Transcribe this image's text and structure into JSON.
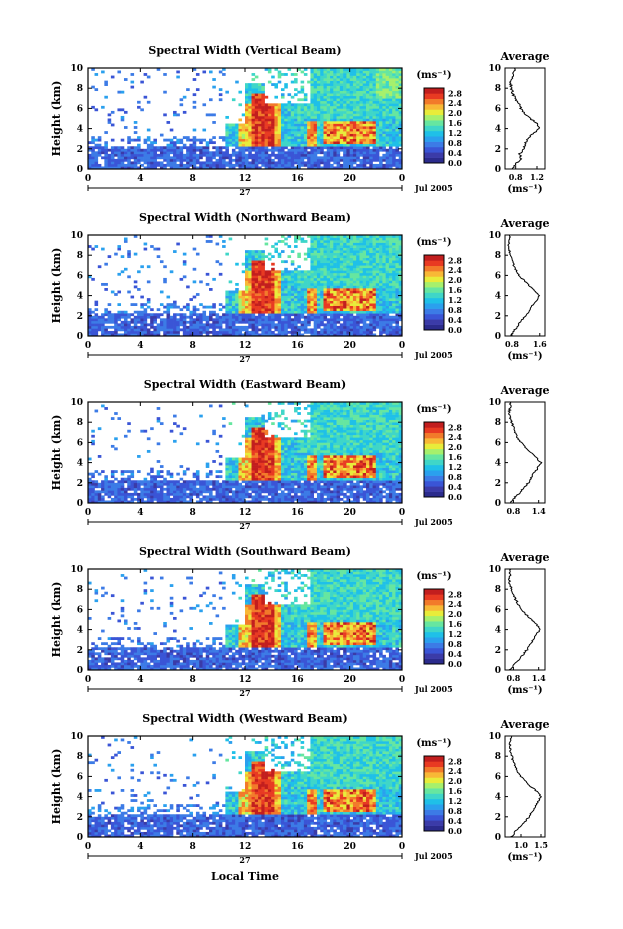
{
  "figure": {
    "xlabel": "Local Time",
    "date_label": "27",
    "month_label": "Jul 2005"
  },
  "colors": {
    "colormap": [
      "#2b2b8c",
      "#3b3ba8",
      "#3a55d6",
      "#3c7be6",
      "#2aa0ee",
      "#1fc0e8",
      "#3fd6c8",
      "#66e6a0",
      "#a6f06c",
      "#e8ec3a",
      "#f8b836",
      "#f27a2a",
      "#e83a22",
      "#c21e1e"
    ],
    "line": "#000000"
  },
  "chart_data": [
    {
      "type": "heatmap",
      "title": "Spectral Width (Vertical Beam)",
      "ylabel": "Height (km)",
      "x_ticks": [
        "0",
        "4",
        "8",
        "12",
        "16",
        "20",
        "0"
      ],
      "y_ticks": [
        "0",
        "2",
        "4",
        "6",
        "8",
        "10"
      ],
      "xlim": [
        0,
        24
      ],
      "ylim": [
        0,
        10
      ],
      "colorbar": {
        "unit": "(ms⁻¹)",
        "ticks": [
          "0.0",
          "0.4",
          "0.8",
          "1.2",
          "1.6",
          "2.0",
          "2.4",
          "2.8"
        ],
        "range": [
          0,
          2.8
        ]
      },
      "average": {
        "title": "Average",
        "xlabel": "(ms⁻¹)",
        "x_ticks": [
          "0.8",
          "1.2"
        ],
        "y_ticks": [
          "0",
          "2",
          "4",
          "6",
          "8",
          "10"
        ],
        "xlim": [
          0.6,
          1.35
        ],
        "profile_height": [
          0,
          0.5,
          1,
          1.5,
          2,
          2.5,
          3,
          3.5,
          4,
          4.5,
          5,
          5.5,
          6,
          6.5,
          7,
          7.5,
          8,
          8.5,
          9,
          9.5,
          10
        ],
        "profile_value": [
          0.72,
          0.8,
          0.9,
          0.88,
          0.95,
          0.98,
          1.02,
          1.12,
          1.25,
          1.2,
          1.08,
          0.98,
          0.9,
          0.85,
          0.78,
          0.75,
          0.72,
          0.7,
          0.74,
          0.76,
          0.8
        ]
      }
    },
    {
      "type": "heatmap",
      "title": "Spectral Width (Northward Beam)",
      "ylabel": "Height (km)",
      "x_ticks": [
        "0",
        "4",
        "8",
        "12",
        "16",
        "20",
        "0"
      ],
      "y_ticks": [
        "0",
        "2",
        "4",
        "6",
        "8",
        "10"
      ],
      "xlim": [
        0,
        24
      ],
      "ylim": [
        0,
        10
      ],
      "colorbar": {
        "unit": "(ms⁻¹)",
        "ticks": [
          "0.0",
          "0.4",
          "0.8",
          "1.2",
          "1.6",
          "2.0",
          "2.4",
          "2.8"
        ],
        "range": [
          0,
          2.8
        ]
      },
      "average": {
        "title": "Average",
        "xlabel": "(ms⁻¹)",
        "x_ticks": [
          "0.8",
          "1.6"
        ],
        "y_ticks": [
          "0",
          "2",
          "4",
          "6",
          "8",
          "10"
        ],
        "xlim": [
          0.6,
          1.75
        ],
        "profile_height": [
          0,
          0.5,
          1,
          1.5,
          2,
          2.5,
          3,
          3.5,
          4,
          4.5,
          5,
          5.5,
          6,
          6.5,
          7,
          7.5,
          8,
          8.5,
          9,
          9.5,
          10
        ],
        "profile_value": [
          0.75,
          0.85,
          0.98,
          1.05,
          1.2,
          1.3,
          1.38,
          1.5,
          1.6,
          1.45,
          1.3,
          1.15,
          1.0,
          0.92,
          0.85,
          0.8,
          0.76,
          0.72,
          0.7,
          0.72,
          0.75
        ]
      }
    },
    {
      "type": "heatmap",
      "title": "Spectral Width (Eastward Beam)",
      "ylabel": "Height (km)",
      "x_ticks": [
        "0",
        "4",
        "8",
        "12",
        "16",
        "20",
        "0"
      ],
      "y_ticks": [
        "0",
        "2",
        "4",
        "6",
        "8",
        "10"
      ],
      "xlim": [
        0,
        24
      ],
      "ylim": [
        0,
        10
      ],
      "colorbar": {
        "unit": "(ms⁻¹)",
        "ticks": [
          "0.0",
          "0.4",
          "0.8",
          "1.2",
          "1.6",
          "2.0",
          "2.4",
          "2.8"
        ],
        "range": [
          0,
          2.8
        ]
      },
      "average": {
        "title": "Average",
        "xlabel": "",
        "x_ticks": [
          "0.8",
          "1.4"
        ],
        "y_ticks": [
          "0",
          "2",
          "4",
          "6",
          "8",
          "10"
        ],
        "xlim": [
          0.6,
          1.55
        ],
        "profile_height": [
          0,
          0.5,
          1,
          1.5,
          2,
          2.5,
          3,
          3.5,
          4,
          4.5,
          5,
          5.5,
          6,
          6.5,
          7,
          7.5,
          8,
          8.5,
          9,
          9.5,
          10
        ],
        "profile_value": [
          0.72,
          0.82,
          0.95,
          1.05,
          1.15,
          1.22,
          1.3,
          1.38,
          1.45,
          1.35,
          1.2,
          1.08,
          0.98,
          0.9,
          0.85,
          0.8,
          0.76,
          0.72,
          0.7,
          0.72,
          0.74
        ]
      }
    },
    {
      "type": "heatmap",
      "title": "Spectral Width (Southward Beam)",
      "ylabel": "Height (km)",
      "x_ticks": [
        "0",
        "4",
        "8",
        "12",
        "16",
        "20",
        "0"
      ],
      "y_ticks": [
        "0",
        "2",
        "4",
        "6",
        "8",
        "10"
      ],
      "xlim": [
        0,
        24
      ],
      "ylim": [
        0,
        10
      ],
      "colorbar": {
        "unit": "(ms⁻¹)",
        "ticks": [
          "0.0",
          "0.4",
          "0.8",
          "1.2",
          "1.6",
          "2.0",
          "2.4",
          "2.8"
        ],
        "range": [
          0,
          2.8
        ]
      },
      "average": {
        "title": "Average",
        "xlabel": "(ms⁻¹)",
        "x_ticks": [
          "0.8",
          "1.4"
        ],
        "y_ticks": [
          "0",
          "2",
          "4",
          "6",
          "8",
          "10"
        ],
        "xlim": [
          0.6,
          1.55
        ],
        "profile_height": [
          0,
          0.5,
          1,
          1.5,
          2,
          2.5,
          3,
          3.5,
          4,
          4.5,
          5,
          5.5,
          6,
          6.5,
          7,
          7.5,
          8,
          8.5,
          9,
          9.5,
          10
        ],
        "profile_value": [
          0.72,
          0.8,
          0.92,
          1.02,
          1.12,
          1.2,
          1.28,
          1.35,
          1.42,
          1.35,
          1.22,
          1.1,
          1.0,
          0.92,
          0.85,
          0.8,
          0.76,
          0.72,
          0.7,
          0.72,
          0.74
        ]
      }
    },
    {
      "type": "heatmap",
      "title": "Spectral Width (Westward Beam)",
      "ylabel": "Height (km)",
      "x_ticks": [
        "0",
        "4",
        "8",
        "12",
        "16",
        "20",
        "0"
      ],
      "y_ticks": [
        "0",
        "2",
        "4",
        "6",
        "8",
        "10"
      ],
      "xlim": [
        0,
        24
      ],
      "ylim": [
        0,
        10
      ],
      "colorbar": {
        "unit": "(ms⁻¹)",
        "ticks": [
          "0.0",
          "0.4",
          "0.8",
          "1.2",
          "1.6",
          "2.0",
          "2.4",
          "2.8"
        ],
        "range": [
          0,
          2.8
        ]
      },
      "average": {
        "title": "Average",
        "xlabel": "(ms⁻¹)",
        "x_ticks": [
          "1.0",
          "1.5"
        ],
        "y_ticks": [
          "0",
          "2",
          "4",
          "6",
          "8",
          "10"
        ],
        "xlim": [
          0.6,
          1.6
        ],
        "profile_height": [
          0,
          0.5,
          1,
          1.5,
          2,
          2.5,
          3,
          3.5,
          4,
          4.5,
          5,
          5.5,
          6,
          6.5,
          7,
          7.5,
          8,
          8.5,
          9,
          9.5,
          10
        ],
        "profile_value": [
          0.75,
          0.85,
          0.98,
          1.1,
          1.2,
          1.28,
          1.35,
          1.42,
          1.5,
          1.4,
          1.25,
          1.12,
          1.0,
          0.92,
          0.85,
          0.8,
          0.78,
          0.74,
          0.72,
          0.74,
          0.76
        ]
      }
    }
  ]
}
